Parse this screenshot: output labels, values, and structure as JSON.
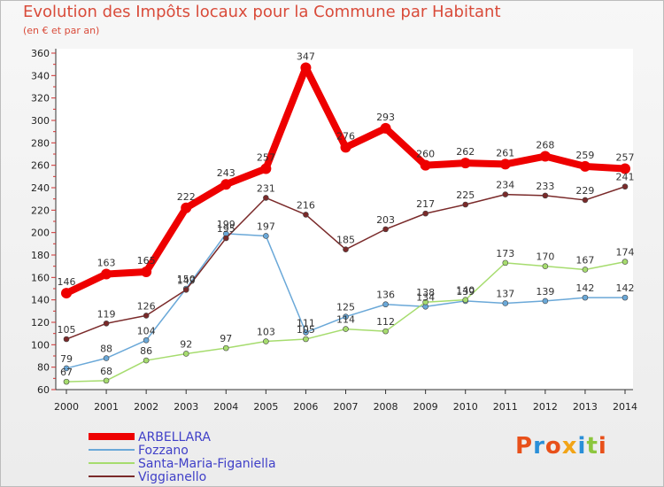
{
  "header": {
    "title": "Evolution des Impôts locaux pour la Commune par Habitant",
    "subtitle": "(en € et par an)"
  },
  "logo": {
    "text": "Proxiti",
    "colors": [
      "#e8501a",
      "#2a8fd8",
      "#e8501a",
      "#f2a416",
      "#2a8fd8",
      "#8cc63e",
      "#e8501a"
    ]
  },
  "chart_data": {
    "type": "line",
    "x": [
      2000,
      2001,
      2002,
      2003,
      2004,
      2005,
      2006,
      2007,
      2008,
      2009,
      2010,
      2011,
      2012,
      2013,
      2014
    ],
    "ylim": [
      60,
      360
    ],
    "yticks": [
      60,
      80,
      100,
      120,
      140,
      160,
      180,
      200,
      220,
      240,
      260,
      280,
      300,
      320,
      340,
      360
    ],
    "grid": false,
    "legend_position": "bottom-left",
    "series": [
      {
        "name": "ARBELLARA",
        "color": "#ee0000",
        "width": 8,
        "marker": 6,
        "values": [
          146,
          163,
          165,
          222,
          243,
          257,
          347,
          276,
          293,
          260,
          262,
          261,
          268,
          259,
          257
        ],
        "labels": [
          "146",
          "163",
          "165",
          "222",
          "243",
          "257",
          "347",
          "276",
          "293",
          "260",
          "262",
          "261",
          "268",
          "259",
          "257"
        ]
      },
      {
        "name": "Fozzano",
        "color": "#6aa8d8",
        "width": 1.5,
        "marker": 3,
        "values": [
          79,
          88,
          104,
          150,
          199,
          197,
          111,
          125,
          136,
          134,
          139,
          137,
          139,
          142,
          142
        ],
        "labels": [
          "79",
          "88",
          "104",
          "150",
          "199",
          "197",
          "111",
          "125",
          "136",
          "134",
          "139",
          "137",
          "139",
          "142",
          "142"
        ]
      },
      {
        "name": "Santa-Maria-Figaniella",
        "color": "#a6dc6e",
        "width": 1.5,
        "marker": 3,
        "values": [
          67,
          68,
          86,
          92,
          97,
          103,
          105,
          114,
          112,
          138,
          140,
          173,
          170,
          167,
          174
        ],
        "labels": [
          "67",
          "68",
          "86",
          "92",
          "97",
          "103",
          "105",
          "114",
          "112",
          "138",
          "140",
          "173",
          "170",
          "167",
          "174"
        ]
      },
      {
        "name": "Viggianello",
        "color": "#7a2a2a",
        "width": 1.5,
        "marker": 3,
        "values": [
          105,
          119,
          126,
          149,
          195,
          231,
          216,
          185,
          203,
          217,
          225,
          234,
          233,
          229,
          241
        ],
        "labels": [
          "105",
          "119",
          "126",
          "149",
          "195",
          "231",
          "216",
          "185",
          "203",
          "217",
          "225",
          "234",
          "233",
          "229",
          "241"
        ]
      }
    ]
  }
}
